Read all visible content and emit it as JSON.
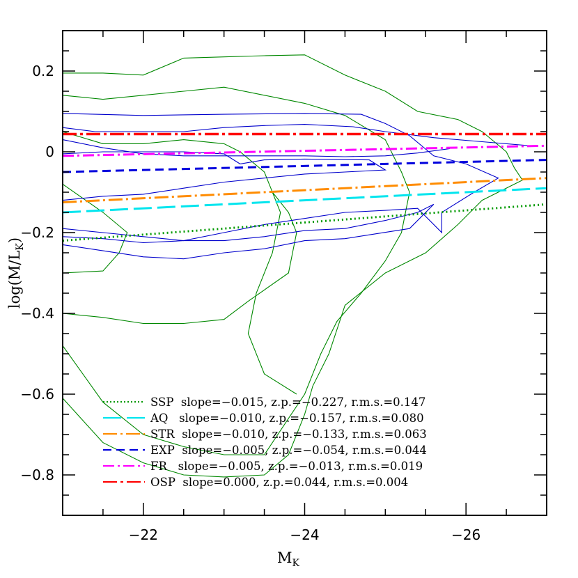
{
  "chart_data": {
    "type": "line",
    "xlabel": "M",
    "xlabel_sub": "K",
    "ylabel": "log(M/L",
    "ylabel_sub": "K",
    "ylabel_end": ")",
    "xlim": [
      -21,
      -27
    ],
    "ylim": [
      -0.9,
      0.3
    ],
    "xticks_major": [
      -22,
      -24,
      -26
    ],
    "xtick_labels": [
      "−22",
      "−24",
      "−26"
    ],
    "yticks_major": [
      0.2,
      0,
      -0.2,
      -0.4,
      -0.6,
      -0.8
    ],
    "ytick_labels": [
      "0.2",
      "0",
      "−0.2",
      "−0.4",
      "−0.6",
      "−0.8"
    ],
    "series": [
      {
        "name": "SSP",
        "slope": -0.015,
        "zp": -0.227,
        "legend": "SSP  slope=−0.015, z.p.=−0.227, r.m.s.=0.147",
        "color": "#009900",
        "dash": "2,4",
        "width": 3,
        "x": [
          -21,
          -27
        ],
        "y": [
          -0.22,
          -0.13
        ]
      },
      {
        "name": "AQ",
        "slope": -0.01,
        "zp": -0.157,
        "legend": "AQ   slope=−0.010, z.p.=−0.157, r.m.s.=0.080",
        "color": "#00e5ee",
        "dash": "26,8",
        "width": 3,
        "x": [
          -21,
          -27
        ],
        "y": [
          -0.15,
          -0.09
        ]
      },
      {
        "name": "STR",
        "slope": -0.01,
        "zp": -0.133,
        "legend": "STR  slope=−0.010, z.p.=−0.133, r.m.s.=0.063",
        "color": "#ff8c00",
        "dash": "20,5,3,5",
        "width": 3,
        "x": [
          -21,
          -27
        ],
        "y": [
          -0.125,
          -0.065
        ]
      },
      {
        "name": "EXP",
        "slope": -0.005,
        "zp": -0.054,
        "legend": "EXP  slope=−0.005, z.p.=−0.054, r.m.s.=0.044",
        "color": "#0000dd",
        "dash": "12,7",
        "width": 3,
        "x": [
          -21,
          -27
        ],
        "y": [
          -0.05,
          -0.02
        ]
      },
      {
        "name": "FR",
        "slope": -0.005,
        "zp": -0.013,
        "legend": "FR   slope=−0.005, z.p.=−0.013, r.m.s.=0.019",
        "color": "#ff00ff",
        "dash": "16,5,3,5",
        "width": 3,
        "x": [
          -21,
          -27
        ],
        "y": [
          -0.01,
          0.015
        ]
      },
      {
        "name": "OSP",
        "slope": 0.0,
        "zp": 0.044,
        "legend": "OSP  slope=0.000, z.p.=0.044, r.m.s.=0.004",
        "color": "#ff0000",
        "dash": "20,5,4,5",
        "width": 3.5,
        "x": [
          -21,
          -27
        ],
        "y": [
          0.044,
          0.044
        ]
      }
    ],
    "contours_blue": [
      [
        [
          -21,
          0.06
        ],
        [
          -21.4,
          0.05
        ],
        [
          -22,
          0.05
        ],
        [
          -22.5,
          0.05
        ],
        [
          -23,
          0.06
        ],
        [
          -23.5,
          0.065
        ],
        [
          -24,
          0.068
        ],
        [
          -24.6,
          0.062
        ],
        [
          -25,
          0.05
        ],
        [
          -25.6,
          0.035
        ],
        [
          -26.2,
          0.025
        ],
        [
          -26.8,
          0.015
        ]
      ],
      [
        [
          -21,
          0.03
        ],
        [
          -21.5,
          0.01
        ],
        [
          -22,
          -0.005
        ],
        [
          -22.5,
          -0.01
        ],
        [
          -23,
          -0.01
        ],
        [
          -23.5,
          -0.01
        ],
        [
          -24,
          -0.01
        ],
        [
          -24.5,
          -0.012
        ],
        [
          -25,
          -0.01
        ],
        [
          -25.4,
          -0.003
        ],
        [
          -25.8,
          0.008
        ]
      ],
      [
        [
          -21,
          -0.12
        ],
        [
          -21.5,
          -0.11
        ],
        [
          -22,
          -0.105
        ],
        [
          -22.5,
          -0.09
        ],
        [
          -23,
          -0.075
        ],
        [
          -23.5,
          -0.065
        ],
        [
          -24,
          -0.055
        ],
        [
          -24.5,
          -0.05
        ],
        [
          -25,
          -0.045
        ],
        [
          -24.8,
          -0.02
        ],
        [
          -24,
          -0.018
        ],
        [
          -23.5,
          -0.02
        ],
        [
          -23.2,
          -0.03
        ],
        [
          -23,
          -0.005
        ],
        [
          -22.5,
          -0.0
        ],
        [
          -22,
          0.0
        ],
        [
          -21.5,
          -0.0
        ],
        [
          -21,
          -0.005
        ]
      ],
      [
        [
          -21,
          0.095
        ],
        [
          -22,
          0.09
        ],
        [
          -23,
          0.093
        ],
        [
          -24,
          0.095
        ],
        [
          -24.7,
          0.093
        ],
        [
          -25,
          0.07
        ],
        [
          -25.3,
          0.04
        ],
        [
          -25.6,
          -0.01
        ],
        [
          -26,
          -0.03
        ],
        [
          -26.4,
          -0.065
        ],
        [
          -26.1,
          -0.1
        ],
        [
          -25.7,
          -0.15
        ],
        [
          -25.7,
          -0.2
        ],
        [
          -25.4,
          -0.14
        ],
        [
          -25,
          -0.145
        ],
        [
          -24.5,
          -0.15
        ],
        [
          -24,
          -0.165
        ],
        [
          -23.5,
          -0.18
        ],
        [
          -23,
          -0.2
        ],
        [
          -22.5,
          -0.22
        ],
        [
          -22,
          -0.225
        ],
        [
          -21.5,
          -0.215
        ],
        [
          -21,
          -0.21
        ]
      ],
      [
        [
          -21,
          -0.19
        ],
        [
          -21.5,
          -0.2
        ],
        [
          -22,
          -0.21
        ],
        [
          -22.5,
          -0.22
        ],
        [
          -23,
          -0.22
        ],
        [
          -23.5,
          -0.21
        ],
        [
          -24,
          -0.195
        ],
        [
          -24.5,
          -0.19
        ],
        [
          -25,
          -0.17
        ],
        [
          -25.4,
          -0.15
        ],
        [
          -25.6,
          -0.13
        ],
        [
          -25.3,
          -0.19
        ],
        [
          -24.5,
          -0.215
        ],
        [
          -24,
          -0.22
        ],
        [
          -23.5,
          -0.24
        ],
        [
          -23,
          -0.25
        ],
        [
          -22.5,
          -0.265
        ],
        [
          -22,
          -0.26
        ],
        [
          -21.5,
          -0.245
        ],
        [
          -21,
          -0.23
        ]
      ]
    ],
    "contours_green": [
      [
        [
          -21,
          0.195
        ],
        [
          -21.5,
          0.195
        ],
        [
          -22,
          0.19
        ],
        [
          -22.5,
          0.232
        ],
        [
          -23,
          0.235
        ],
        [
          -23.5,
          0.238
        ],
        [
          -24,
          0.24
        ],
        [
          -24.5,
          0.19
        ],
        [
          -25,
          0.15
        ],
        [
          -25.4,
          0.1
        ],
        [
          -25.9,
          0.08
        ],
        [
          -26.2,
          0.05
        ],
        [
          -26.5,
          0.0
        ],
        [
          -26.6,
          -0.04
        ],
        [
          -26.7,
          -0.07
        ],
        [
          -26.2,
          -0.12
        ],
        [
          -25.9,
          -0.18
        ],
        [
          -25.5,
          -0.25
        ],
        [
          -25,
          -0.3
        ],
        [
          -24.5,
          -0.38
        ],
        [
          -24.3,
          -0.5
        ],
        [
          -24.1,
          -0.58
        ],
        [
          -24,
          -0.65
        ],
        [
          -23.8,
          -0.75
        ],
        [
          -23.5,
          -0.8
        ],
        [
          -23,
          -0.805
        ],
        [
          -22.5,
          -0.8
        ],
        [
          -22,
          -0.77
        ],
        [
          -21.5,
          -0.72
        ],
        [
          -21,
          -0.61
        ]
      ],
      [
        [
          -21,
          0.14
        ],
        [
          -21.5,
          0.13
        ],
        [
          -22,
          0.14
        ],
        [
          -22.5,
          0.15
        ],
        [
          -23,
          0.16
        ],
        [
          -23.5,
          0.14
        ],
        [
          -24,
          0.12
        ],
        [
          -24.5,
          0.09
        ],
        [
          -25,
          0.03
        ],
        [
          -25.2,
          -0.05
        ],
        [
          -25.3,
          -0.1
        ],
        [
          -25.2,
          -0.2
        ],
        [
          -25,
          -0.27
        ],
        [
          -24.7,
          -0.35
        ],
        [
          -24.4,
          -0.42
        ],
        [
          -24.2,
          -0.5
        ],
        [
          -24,
          -0.6
        ],
        [
          -23.8,
          -0.66
        ],
        [
          -23.5,
          -0.75
        ],
        [
          -23,
          -0.75
        ],
        [
          -22.5,
          -0.73
        ],
        [
          -22,
          -0.7
        ],
        [
          -21.5,
          -0.62
        ],
        [
          -21,
          -0.48
        ]
      ],
      [
        [
          -21,
          -0.08
        ],
        [
          -21.5,
          -0.15
        ],
        [
          -21.8,
          -0.2
        ],
        [
          -21.7,
          -0.25
        ],
        [
          -21.5,
          -0.295
        ],
        [
          -21,
          -0.3
        ]
      ],
      [
        [
          -21,
          -0.4
        ],
        [
          -21.5,
          -0.41
        ],
        [
          -22,
          -0.425
        ],
        [
          -22.5,
          -0.425
        ],
        [
          -23,
          -0.415
        ],
        [
          -23.3,
          -0.37
        ],
        [
          -23.8,
          -0.3
        ],
        [
          -23.9,
          -0.2
        ],
        [
          -23.8,
          -0.15
        ],
        [
          -23.6,
          -0.1
        ],
        [
          -23.5,
          -0.05
        ],
        [
          -23.2,
          0.0
        ],
        [
          -23,
          0.02
        ],
        [
          -22.5,
          0.03
        ],
        [
          -22,
          0.02
        ],
        [
          -21.5,
          0.02
        ],
        [
          -21,
          0.05
        ]
      ],
      [
        [
          -23.9,
          -0.6
        ],
        [
          -23.5,
          -0.55
        ],
        [
          -23.3,
          -0.45
        ],
        [
          -23.4,
          -0.35
        ],
        [
          -23.6,
          -0.25
        ],
        [
          -23.7,
          -0.15
        ],
        [
          -23.6,
          -0.1
        ]
      ]
    ]
  }
}
